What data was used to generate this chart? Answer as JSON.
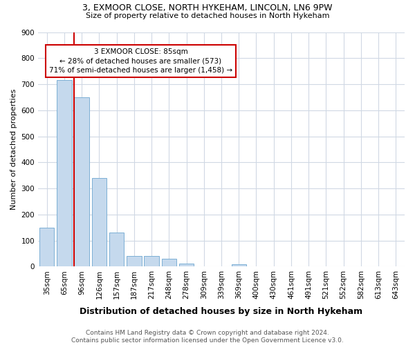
{
  "title": "3, EXMOOR CLOSE, NORTH HYKEHAM, LINCOLN, LN6 9PW",
  "subtitle": "Size of property relative to detached houses in North Hykeham",
  "xlabel": "Distribution of detached houses by size in North Hykeham",
  "ylabel": "Number of detached properties",
  "bar_color": "#c5d9ed",
  "bar_edge_color": "#7bafd4",
  "categories": [
    "35sqm",
    "65sqm",
    "96sqm",
    "126sqm",
    "157sqm",
    "187sqm",
    "217sqm",
    "248sqm",
    "278sqm",
    "309sqm",
    "339sqm",
    "369sqm",
    "400sqm",
    "430sqm",
    "461sqm",
    "491sqm",
    "521sqm",
    "552sqm",
    "582sqm",
    "613sqm",
    "643sqm"
  ],
  "values": [
    150,
    715,
    650,
    340,
    130,
    42,
    40,
    30,
    12,
    0,
    0,
    10,
    0,
    0,
    0,
    0,
    0,
    0,
    0,
    0,
    0
  ],
  "ylim": [
    0,
    900
  ],
  "yticks": [
    0,
    100,
    200,
    300,
    400,
    500,
    600,
    700,
    800,
    900
  ],
  "vline_x_index": 2,
  "vline_color": "#cc0000",
  "annotation_line1": "3 EXMOOR CLOSE: 85sqm",
  "annotation_line2": "← 28% of detached houses are smaller (573)",
  "annotation_line3": "71% of semi-detached houses are larger (1,458) →",
  "annotation_box_color": "#ffffff",
  "annotation_box_edge": "#cc0000",
  "footer": "Contains HM Land Registry data © Crown copyright and database right 2024.\nContains public sector information licensed under the Open Government Licence v3.0.",
  "background_color": "#ffffff",
  "grid_color": "#d0d8e4",
  "title_fontsize": 9,
  "subtitle_fontsize": 8,
  "xlabel_fontsize": 9,
  "ylabel_fontsize": 8,
  "tick_fontsize": 7.5,
  "footer_fontsize": 6.5
}
